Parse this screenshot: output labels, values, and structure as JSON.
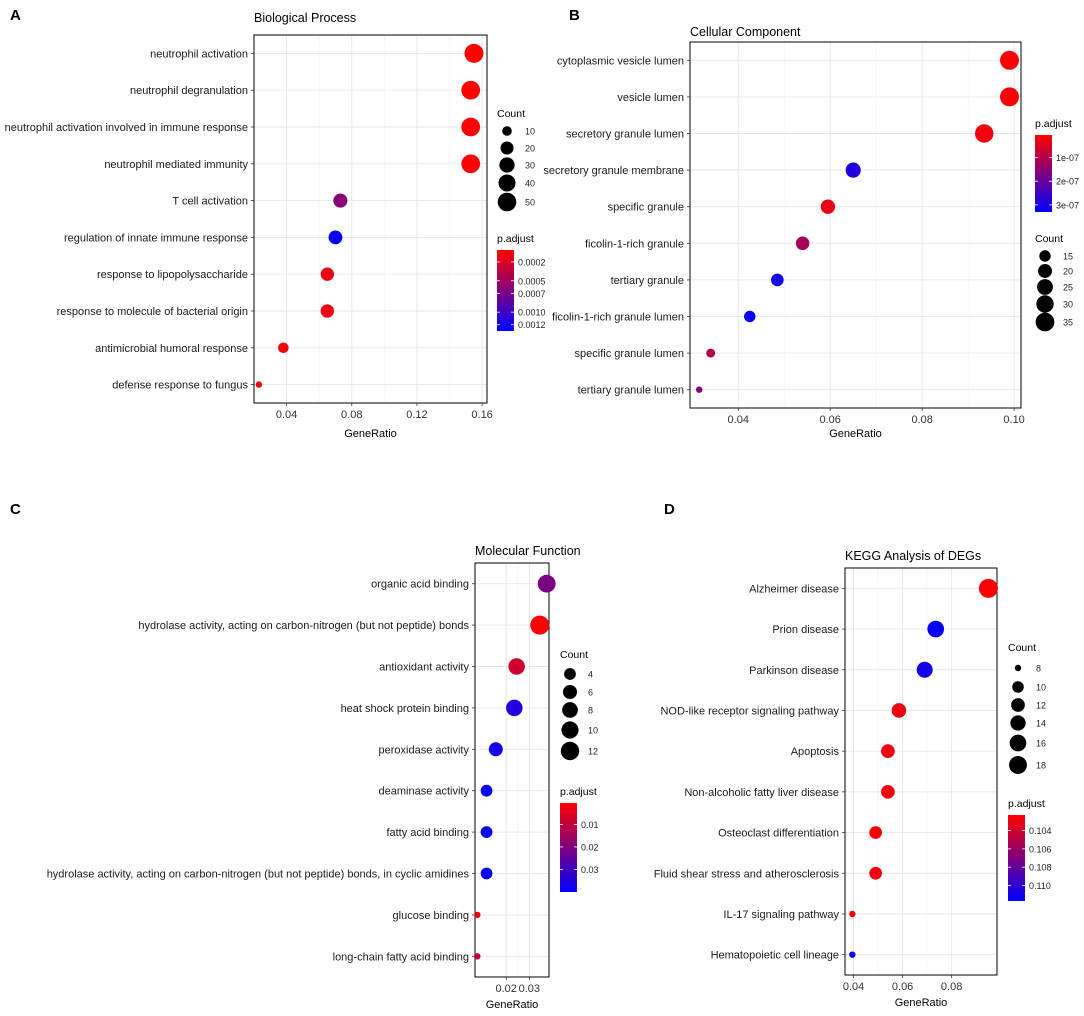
{
  "chart_data": [
    {
      "panel": "A",
      "type": "scatter",
      "title": "Biological Process",
      "xlabel": "GeneRatio",
      "xlim": [
        0.02,
        0.163
      ],
      "xticks": [
        0.04,
        0.08,
        0.12,
        0.16
      ],
      "xtick_labels": [
        "0.04",
        "0.08",
        "0.12",
        "0.16"
      ],
      "categories": [
        "neutrophil activation",
        "neutrophil degranulation",
        "neutrophil activation involved in immune response",
        "neutrophil mediated immunity",
        "T cell activation",
        "regulation of innate immune response",
        "response to lipopolysaccharide",
        "response to molecule of bacterial origin",
        "antimicrobial humoral response",
        "defense response to fungus"
      ],
      "gene_ratio": [
        0.155,
        0.153,
        0.153,
        0.153,
        0.073,
        0.07,
        0.065,
        0.065,
        0.038,
        0.023
      ],
      "count": [
        53,
        51,
        51,
        51,
        24,
        23,
        21,
        21,
        12,
        7
      ],
      "p_adjust": [
        1e-05,
        1e-05,
        1e-05,
        1e-05,
        0.0006,
        0.00125,
        0.0001,
        0.0001,
        5e-05,
        0.0001
      ],
      "size_legend": {
        "title": "Count",
        "values": [
          10,
          20,
          30,
          40,
          50
        ],
        "labels": [
          "10",
          "20",
          "30",
          "40",
          "50"
        ],
        "range": [
          7,
          53
        ]
      },
      "color_legend": {
        "title": "p.adjust",
        "range": [
          1e-05,
          0.0013
        ],
        "ticks": [
          0.0002,
          0.0005,
          0.0007,
          0.001,
          0.0012
        ],
        "tick_labels": [
          "0.0002",
          "0.0005",
          "0.0007",
          "0.0010",
          "0.0012"
        ],
        "low_color": "#ff0000",
        "high_color": "#0000ff"
      }
    },
    {
      "panel": "B",
      "type": "scatter",
      "title": "Cellular Component",
      "xlabel": "GeneRatio",
      "xlim": [
        0.0295,
        0.1015
      ],
      "xticks": [
        0.04,
        0.06,
        0.08,
        0.1
      ],
      "xtick_labels": [
        "0.04",
        "0.06",
        "0.08",
        "0.10"
      ],
      "categories": [
        "cytoplasmic vesicle lumen",
        "vesicle lumen",
        "secretory granule lumen",
        "secretory granule membrane",
        "specific granule",
        "ficolin-1-rich granule",
        "tertiary granule",
        "ficolin-1-rich granule lumen",
        "specific granule lumen",
        "tertiary granule lumen"
      ],
      "gene_ratio": [
        0.099,
        0.099,
        0.0935,
        0.065,
        0.0595,
        0.054,
        0.0485,
        0.0425,
        0.034,
        0.0315
      ],
      "count": [
        36,
        36,
        34,
        23,
        21,
        19,
        17,
        15,
        12,
        11
      ],
      "p_adjust": [
        1e-08,
        1e-08,
        2e-08,
        2.9e-07,
        3e-08,
        1.2e-07,
        3.1e-07,
        3.2e-07,
        1e-07,
        1.6e-07
      ],
      "size_legend": {
        "title": "Count",
        "values": [
          15,
          20,
          25,
          30,
          35
        ],
        "labels": [
          "15",
          "20",
          "25",
          "30",
          "35"
        ],
        "range": [
          11,
          36
        ]
      },
      "color_legend": {
        "title": "p.adjust",
        "range": [
          5e-09,
          3.3e-07
        ],
        "ticks": [
          1e-07,
          2e-07,
          3e-07
        ],
        "tick_labels": [
          "1e-07",
          "2e-07",
          "3e-07"
        ],
        "low_color": "#ff0000",
        "high_color": "#0000ff"
      }
    },
    {
      "panel": "C",
      "type": "scatter",
      "title": "Molecular Function",
      "xlabel": "GeneRatio",
      "xlim": [
        0.0065,
        0.0385
      ],
      "xticks": [
        0.02,
        0.03
      ],
      "xtick_labels": [
        "0.02",
        "0.03"
      ],
      "categories": [
        "organic acid binding",
        "hydrolase activity, acting on carbon-nitrogen (but not peptide) bonds",
        "antioxidant activity",
        "heat shock protein binding",
        "peroxidase activity",
        "deaminase activity",
        "fatty acid binding",
        "hydrolase activity, acting on carbon-nitrogen (but not peptide) bonds, in cyclic amidines",
        "glucose binding",
        "long-chain fatty acid binding"
      ],
      "gene_ratio": [
        0.0375,
        0.0345,
        0.0245,
        0.0235,
        0.0155,
        0.0115,
        0.0115,
        0.0115,
        0.0075,
        0.0075
      ],
      "count": [
        11,
        13,
        9,
        9,
        6,
        4,
        4,
        4,
        2,
        2
      ],
      "p_adjust": [
        0.021,
        0.001,
        0.008,
        0.035,
        0.037,
        0.039,
        0.039,
        0.039,
        0.004,
        0.01
      ],
      "size_legend": {
        "title": "Count",
        "values": [
          4,
          6,
          8,
          10,
          12
        ],
        "labels": [
          "4",
          "6",
          "8",
          "10",
          "12"
        ],
        "range": [
          2,
          13
        ]
      },
      "color_legend": {
        "title": "p.adjust",
        "range": [
          0.0005,
          0.04
        ],
        "ticks": [
          0.01,
          0.02,
          0.03
        ],
        "tick_labels": [
          "0.01",
          "0.02",
          "0.03"
        ],
        "low_color": "#ff0000",
        "high_color": "#0000ff"
      }
    },
    {
      "panel": "D",
      "type": "scatter",
      "title": "KEGG Analysis of DEGs",
      "xlabel": "GeneRatio",
      "xlim": [
        0.0365,
        0.0985
      ],
      "xticks": [
        0.04,
        0.06,
        0.08
      ],
      "xtick_labels": [
        "0.04",
        "0.06",
        "0.08"
      ],
      "categories": [
        "Alzheimer disease",
        "Prion disease",
        "Parkinson disease",
        "NOD-like receptor signaling pathway",
        "Apoptosis",
        "Non-alcoholic fatty liver disease",
        "Osteoclast differentiation",
        "Fluid shear stress and atherosclerosis",
        "IL-17 signaling pathway",
        "Hematopoietic cell lineage"
      ],
      "gene_ratio": [
        0.095,
        0.0735,
        0.069,
        0.0585,
        0.054,
        0.054,
        0.049,
        0.049,
        0.0395,
        0.0395
      ],
      "count": [
        20,
        16,
        15,
        13,
        12,
        12,
        11,
        11,
        8,
        8
      ],
      "p_adjust": [
        0.1025,
        0.1115,
        0.111,
        0.103,
        0.1028,
        0.1028,
        0.1025,
        0.1028,
        0.1025,
        0.1115
      ],
      "size_legend": {
        "title": "Count",
        "values": [
          8,
          10,
          12,
          14,
          16,
          18
        ],
        "labels": [
          "8",
          "10",
          "12",
          "14",
          "16",
          "18"
        ],
        "range": [
          8,
          20
        ]
      },
      "color_legend": {
        "title": "p.adjust",
        "range": [
          0.1023,
          0.1117
        ],
        "ticks": [
          0.104,
          0.106,
          0.108,
          0.11
        ],
        "tick_labels": [
          "0.104",
          "0.106",
          "0.108",
          "0.110"
        ],
        "low_color": "#ff0000",
        "high_color": "#0000ff"
      }
    }
  ]
}
